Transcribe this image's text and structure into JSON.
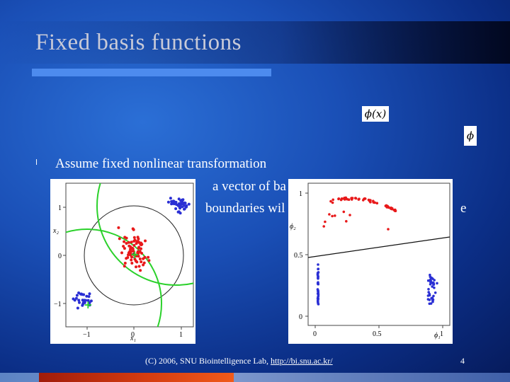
{
  "slide": {
    "title": "Fixed basis functions",
    "bullet_symbol": "l",
    "lines": {
      "assume": "Assume fixed nonlinear transformation",
      "vector": "a vector of ba",
      "boundaries": "boundaries wil",
      "trail": "e"
    },
    "formulas": {
      "phi_x": "ϕ(x)",
      "phi": "ϕ"
    },
    "footer": {
      "prefix": "(C) 2006, SNU Biointelligence Lab, ",
      "link": "http://bi.snu.ac.kr/"
    },
    "page_number": "4"
  },
  "figures": {
    "left": {
      "axis_x": "x₁",
      "axis_y": "x₂",
      "ticks_x": [
        "−1",
        "0",
        "1"
      ],
      "ticks_y": [
        "1",
        "0",
        "−1"
      ]
    },
    "right": {
      "axis_x": "ϕ₁",
      "axis_y": "ϕ₂",
      "ticks_x": [
        "0",
        "0.5",
        "1"
      ],
      "ticks_y": [
        "1",
        "0.5",
        "0"
      ]
    }
  },
  "colors": {
    "red": "#e8191a",
    "blue": "#2a2fd4",
    "green": "#2bd12b",
    "accent": "#4d8bee"
  }
}
